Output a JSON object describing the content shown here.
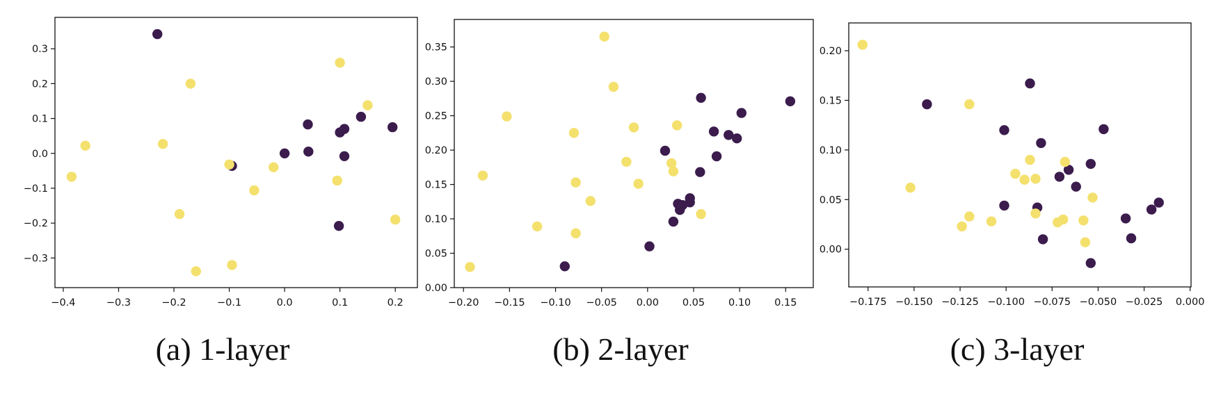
{
  "colors": {
    "class_0": "#3b1c4d",
    "class_1": "#f4e06d",
    "axis": "#111111",
    "background": "#ffffff"
  },
  "chart_data": [
    {
      "type": "scatter",
      "caption": "(a) 1-layer",
      "xlim": [
        -0.415,
        0.24
      ],
      "ylim": [
        -0.385,
        0.39
      ],
      "xticks": [
        -0.4,
        -0.3,
        -0.2,
        -0.1,
        0.0,
        0.1,
        0.2
      ],
      "xtick_labels": [
        "−0.4",
        "−0.3",
        "−0.2",
        "−0.1",
        "0.0",
        "0.1",
        "0.2"
      ],
      "yticks": [
        -0.3,
        -0.2,
        -0.1,
        0.0,
        0.1,
        0.2,
        0.3
      ],
      "ytick_labels": [
        "−0.3",
        "−0.2",
        "−0.1",
        "0.0",
        "0.1",
        "0.2",
        "0.3"
      ],
      "grid": false,
      "series": [
        {
          "color": "#3b1c4d",
          "points": [
            [
              -0.23,
              0.342
            ],
            [
              0.042,
              0.083
            ],
            [
              -0.095,
              -0.036
            ],
            [
              0.0,
              0.0
            ],
            [
              0.043,
              0.005
            ],
            [
              0.1,
              0.06
            ],
            [
              0.108,
              0.07
            ],
            [
              0.138,
              0.105
            ],
            [
              0.195,
              0.075
            ],
            [
              0.108,
              -0.008
            ],
            [
              0.098,
              -0.208
            ]
          ]
        },
        {
          "color": "#f4e06d",
          "points": [
            [
              -0.385,
              -0.067
            ],
            [
              -0.36,
              0.022
            ],
            [
              -0.22,
              0.027
            ],
            [
              -0.17,
              0.2
            ],
            [
              -0.19,
              -0.174
            ],
            [
              -0.16,
              -0.338
            ],
            [
              -0.1,
              -0.032
            ],
            [
              -0.095,
              -0.32
            ],
            [
              -0.055,
              -0.106
            ],
            [
              -0.02,
              -0.04
            ],
            [
              0.1,
              0.26
            ],
            [
              0.15,
              0.138
            ],
            [
              0.095,
              -0.078
            ],
            [
              0.2,
              -0.19
            ]
          ]
        }
      ]
    },
    {
      "type": "scatter",
      "caption": "(b) 2-layer",
      "xlim": [
        -0.21,
        0.18
      ],
      "ylim": [
        0.0,
        0.39
      ],
      "xticks": [
        -0.2,
        -0.15,
        -0.1,
        -0.05,
        0.0,
        0.05,
        0.1,
        0.15
      ],
      "xtick_labels": [
        "−0.20",
        "−0.15",
        "−0.10",
        "−0.05",
        "0.00",
        "0.05",
        "0.10",
        "0.15"
      ],
      "yticks": [
        0.0,
        0.05,
        0.1,
        0.15,
        0.2,
        0.25,
        0.3,
        0.35
      ],
      "ytick_labels": [
        "0.00",
        "0.05",
        "0.10",
        "0.15",
        "0.20",
        "0.25",
        "0.30",
        "0.35"
      ],
      "grid": false,
      "series": [
        {
          "color": "#3b1c4d",
          "points": [
            [
              -0.09,
              0.031
            ],
            [
              0.002,
              0.06
            ],
            [
              0.019,
              0.199
            ],
            [
              0.028,
              0.096
            ],
            [
              0.033,
              0.122
            ],
            [
              0.035,
              0.113
            ],
            [
              0.038,
              0.12
            ],
            [
              0.046,
              0.124
            ],
            [
              0.046,
              0.13
            ],
            [
              0.057,
              0.168
            ],
            [
              0.058,
              0.276
            ],
            [
              0.072,
              0.227
            ],
            [
              0.075,
              0.191
            ],
            [
              0.088,
              0.222
            ],
            [
              0.097,
              0.217
            ],
            [
              0.102,
              0.254
            ],
            [
              0.155,
              0.271
            ]
          ]
        },
        {
          "color": "#f4e06d",
          "points": [
            [
              -0.193,
              0.03
            ],
            [
              -0.179,
              0.163
            ],
            [
              -0.153,
              0.249
            ],
            [
              -0.12,
              0.089
            ],
            [
              -0.08,
              0.225
            ],
            [
              -0.078,
              0.153
            ],
            [
              -0.078,
              0.079
            ],
            [
              -0.062,
              0.126
            ],
            [
              -0.047,
              0.365
            ],
            [
              -0.037,
              0.292
            ],
            [
              -0.023,
              0.183
            ],
            [
              -0.015,
              0.233
            ],
            [
              -0.01,
              0.151
            ],
            [
              0.026,
              0.181
            ],
            [
              0.028,
              0.169
            ],
            [
              0.032,
              0.236
            ],
            [
              0.058,
              0.107
            ]
          ]
        }
      ]
    },
    {
      "type": "scatter",
      "caption": "(c) 3-layer",
      "xlim": [
        -0.1855,
        0.0005
      ],
      "ylim": [
        -0.038,
        0.228
      ],
      "xticks": [
        -0.175,
        -0.15,
        -0.125,
        -0.1,
        -0.075,
        -0.05,
        -0.025,
        0.0
      ],
      "xtick_labels": [
        "−0.175",
        "−0.150",
        "−0.125",
        "−0.100",
        "−0.075",
        "−0.050",
        "−0.025",
        "0.000"
      ],
      "yticks": [
        0.0,
        0.05,
        0.1,
        0.15,
        0.2
      ],
      "ytick_labels": [
        "0.00",
        "0.05",
        "0.10",
        "0.15",
        "0.20"
      ],
      "grid": false,
      "series": [
        {
          "color": "#3b1c4d",
          "points": [
            [
              -0.143,
              0.146
            ],
            [
              -0.101,
              0.12
            ],
            [
              -0.101,
              0.044
            ],
            [
              -0.087,
              0.167
            ],
            [
              -0.083,
              0.042
            ],
            [
              -0.081,
              0.107
            ],
            [
              -0.08,
              0.01
            ],
            [
              -0.071,
              0.073
            ],
            [
              -0.066,
              0.08
            ],
            [
              -0.062,
              0.063
            ],
            [
              -0.054,
              0.086
            ],
            [
              -0.054,
              -0.014
            ],
            [
              -0.047,
              0.121
            ],
            [
              -0.035,
              0.031
            ],
            [
              -0.032,
              0.011
            ],
            [
              -0.021,
              0.04
            ],
            [
              -0.017,
              0.047
            ]
          ]
        },
        {
          "color": "#f4e06d",
          "points": [
            [
              -0.178,
              0.206
            ],
            [
              -0.152,
              0.062
            ],
            [
              -0.124,
              0.023
            ],
            [
              -0.12,
              0.146
            ],
            [
              -0.12,
              0.033
            ],
            [
              -0.108,
              0.028
            ],
            [
              -0.095,
              0.076
            ],
            [
              -0.09,
              0.07
            ],
            [
              -0.087,
              0.09
            ],
            [
              -0.084,
              0.071
            ],
            [
              -0.084,
              0.036
            ],
            [
              -0.072,
              0.027
            ],
            [
              -0.069,
              0.03
            ],
            [
              -0.068,
              0.088
            ],
            [
              -0.058,
              0.029
            ],
            [
              -0.057,
              0.007
            ],
            [
              -0.053,
              0.052
            ]
          ]
        }
      ]
    }
  ]
}
